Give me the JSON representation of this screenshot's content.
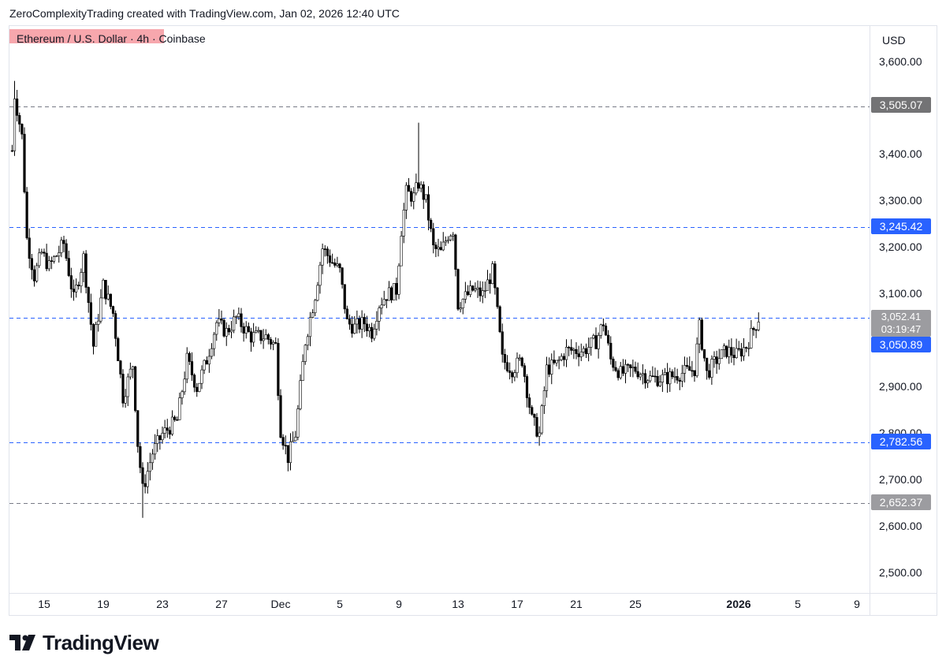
{
  "header": {
    "text": "ZeroComplexityTrading created with TradingView.com, Jan 02, 2026 12:40 UTC"
  },
  "symbol": {
    "label": "Ethereum / U.S. Dollar · 4h · Coinbase"
  },
  "price_axis": {
    "currency": "USD",
    "ticks": [
      "3,600.00",
      "3,400.00",
      "3,300.00",
      "3,200.00",
      "3,100.00",
      "2,900.00",
      "2,800.00",
      "2,700.00",
      "2,600.00",
      "2,500.00"
    ]
  },
  "time_axis": {
    "ticks": [
      {
        "label": "15",
        "bold": false
      },
      {
        "label": "19",
        "bold": false
      },
      {
        "label": "23",
        "bold": false
      },
      {
        "label": "27",
        "bold": false
      },
      {
        "label": "Dec",
        "bold": false
      },
      {
        "label": "5",
        "bold": false
      },
      {
        "label": "9",
        "bold": false
      },
      {
        "label": "13",
        "bold": false
      },
      {
        "label": "17",
        "bold": false
      },
      {
        "label": "21",
        "bold": false
      },
      {
        "label": "25",
        "bold": false
      },
      {
        "label": "2026",
        "bold": true
      },
      {
        "label": "5",
        "bold": false
      },
      {
        "label": "9",
        "bold": false
      }
    ]
  },
  "levels": [
    {
      "label": "3,505.07",
      "value": 3505.07,
      "color": "#787b86",
      "badge": "gray"
    },
    {
      "label": "3,245.42",
      "value": 3245.42,
      "color": "#2962ff",
      "badge": "blue"
    },
    {
      "label": "3,050.89",
      "value": 3050.89,
      "color": "#2962ff",
      "badge": "blue"
    },
    {
      "label": "2,782.56",
      "value": 2782.56,
      "color": "#2962ff",
      "badge": "blue"
    },
    {
      "label": "2,652.37",
      "value": 2652.37,
      "color": "#787b86",
      "badge": "lgray"
    }
  ],
  "current": {
    "price": "3,052.41",
    "countdown": "03:19:47"
  },
  "branding": {
    "name": "TradingView"
  },
  "chart_data": {
    "type": "candlestick",
    "title": "Ethereum / U.S. Dollar · 4h · Coinbase",
    "y_unit": "USD",
    "ylim": [
      2455,
      3667
    ],
    "interval": "4h",
    "x_range": [
      "Nov 12",
      "Jan 10"
    ],
    "colors": {
      "up": "#ffffff",
      "down": "#000000",
      "wick": "#000000"
    },
    "anchors": [
      {
        "date": "Nov 12 20:00",
        "price": 3410
      },
      {
        "date": "Nov 13 00:00",
        "price": 3530
      },
      {
        "date": "Nov 13 12:00",
        "price": 3440
      },
      {
        "date": "Nov 13 20:00",
        "price": 3220
      },
      {
        "date": "Nov 14 08:00",
        "price": 3140
      },
      {
        "date": "Nov 14 20:00",
        "price": 3190
      },
      {
        "date": "Nov 15 08:00",
        "price": 3160
      },
      {
        "date": "Nov 16 08:00",
        "price": 3210
      },
      {
        "date": "Nov 17 00:00",
        "price": 3090
      },
      {
        "date": "Nov 17 16:00",
        "price": 3180
      },
      {
        "date": "Nov 18 08:00",
        "price": 2990
      },
      {
        "date": "Nov 19 00:00",
        "price": 3120
      },
      {
        "date": "Nov 19 16:00",
        "price": 3060
      },
      {
        "date": "Nov 20 08:00",
        "price": 2880
      },
      {
        "date": "Nov 21 00:00",
        "price": 2950
      },
      {
        "date": "Nov 21 08:00",
        "price": 2780
      },
      {
        "date": "Nov 21 16:00",
        "price": 2680
      },
      {
        "date": "Nov 22 08:00",
        "price": 2760
      },
      {
        "date": "Nov 23 00:00",
        "price": 2800
      },
      {
        "date": "Nov 24 00:00",
        "price": 2830
      },
      {
        "date": "Nov 24 16:00",
        "price": 2960
      },
      {
        "date": "Nov 25 08:00",
        "price": 2900
      },
      {
        "date": "Nov 26 00:00",
        "price": 2960
      },
      {
        "date": "Nov 26 16:00",
        "price": 3040
      },
      {
        "date": "Nov 27 08:00",
        "price": 3020
      },
      {
        "date": "Nov 28 00:00",
        "price": 3050
      },
      {
        "date": "Nov 29 00:00",
        "price": 3010
      },
      {
        "date": "Nov 30 00:00",
        "price": 3010
      },
      {
        "date": "Nov 30 16:00",
        "price": 2990
      },
      {
        "date": "Dec 1 00:00",
        "price": 2810
      },
      {
        "date": "Dec 1 12:00",
        "price": 2750
      },
      {
        "date": "Dec 2 00:00",
        "price": 2800
      },
      {
        "date": "Dec 2 16:00",
        "price": 3000
      },
      {
        "date": "Dec 3 08:00",
        "price": 3100
      },
      {
        "date": "Dec 3 20:00",
        "price": 3200
      },
      {
        "date": "Dec 4 12:00",
        "price": 3170
      },
      {
        "date": "Dec 5 00:00",
        "price": 3150
      },
      {
        "date": "Dec 5 12:00",
        "price": 3040
      },
      {
        "date": "Dec 6 00:00",
        "price": 3030
      },
      {
        "date": "Dec 6 16:00",
        "price": 3040
      },
      {
        "date": "Dec 7 04:00",
        "price": 3020
      },
      {
        "date": "Dec 7 16:00",
        "price": 3080
      },
      {
        "date": "Dec 8 04:00",
        "price": 3100
      },
      {
        "date": "Dec 8 20:00",
        "price": 3110
      },
      {
        "date": "Dec 9 04:00",
        "price": 3240
      },
      {
        "date": "Dec 9 12:00",
        "price": 3320
      },
      {
        "date": "Dec 10 00:00",
        "price": 3310
      },
      {
        "date": "Dec 10 08:00",
        "price": 3340
      },
      {
        "date": "Dec 10 20:00",
        "price": 3300
      },
      {
        "date": "Dec 11 08:00",
        "price": 3200
      },
      {
        "date": "Dec 11 20:00",
        "price": 3190
      },
      {
        "date": "Dec 12 08:00",
        "price": 3230
      },
      {
        "date": "Dec 12 16:00",
        "price": 3240
      },
      {
        "date": "Dec 13 00:00",
        "price": 3080
      },
      {
        "date": "Dec 14 00:00",
        "price": 3110
      },
      {
        "date": "Dec 14 16:00",
        "price": 3100
      },
      {
        "date": "Dec 15 08:00",
        "price": 3150
      },
      {
        "date": "Dec 15 16:00",
        "price": 3060
      },
      {
        "date": "Dec 16 00:00",
        "price": 2960
      },
      {
        "date": "Dec 16 16:00",
        "price": 2940
      },
      {
        "date": "Dec 17 08:00",
        "price": 2960
      },
      {
        "date": "Dec 18 00:00",
        "price": 2830
      },
      {
        "date": "Dec 18 12:00",
        "price": 2800
      },
      {
        "date": "Dec 19 00:00",
        "price": 2940
      },
      {
        "date": "Dec 19 16:00",
        "price": 2950
      },
      {
        "date": "Dec 20 08:00",
        "price": 2980
      },
      {
        "date": "Dec 21 12:00",
        "price": 2980
      },
      {
        "date": "Dec 22 08:00",
        "price": 3000
      },
      {
        "date": "Dec 22 20:00",
        "price": 3040
      },
      {
        "date": "Dec 23 08:00",
        "price": 2960
      },
      {
        "date": "Dec 24 00:00",
        "price": 2930
      },
      {
        "date": "Dec 25 00:00",
        "price": 2940
      },
      {
        "date": "Dec 26 00:00",
        "price": 2920
      },
      {
        "date": "Dec 27 00:00",
        "price": 2920
      },
      {
        "date": "Dec 28 00:00",
        "price": 2930
      },
      {
        "date": "Dec 29 00:00",
        "price": 2940
      },
      {
        "date": "Dec 29 08:00",
        "price": 3030
      },
      {
        "date": "Dec 29 20:00",
        "price": 2930
      },
      {
        "date": "Dec 30 12:00",
        "price": 2960
      },
      {
        "date": "Dec 31 04:00",
        "price": 2980
      },
      {
        "date": "Dec 31 20:00",
        "price": 2970
      },
      {
        "date": "Jan 1 12:00",
        "price": 2990
      },
      {
        "date": "Jan 2 08:00",
        "price": 3050
      }
    ],
    "notable_extremes": [
      {
        "date": "Nov 13 00:00",
        "high": 3560
      },
      {
        "date": "Nov 21 16:00",
        "low": 2620
      },
      {
        "date": "Dec 10 08:00",
        "high": 3470
      },
      {
        "date": "Dec 1 12:00",
        "low": 2720
      },
      {
        "date": "Dec 18 12:00",
        "low": 2775
      }
    ]
  }
}
